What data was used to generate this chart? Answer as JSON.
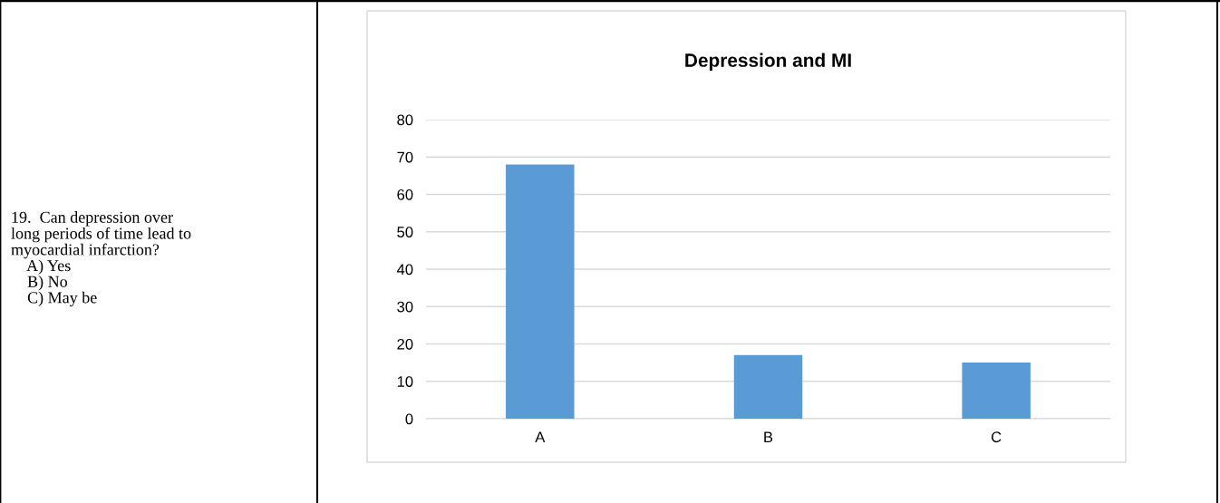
{
  "chart_data": {
    "type": "bar",
    "title": "Depression and MI",
    "categories": [
      "A",
      "B",
      "C"
    ],
    "values": [
      68,
      17,
      15
    ],
    "color": "#5b9bd5",
    "ylim": [
      0,
      80
    ],
    "yticks": [
      0,
      10,
      20,
      30,
      40,
      50,
      60,
      70,
      80
    ],
    "grid": "y",
    "annotations": [
      "19.  Can depression over\nlong periods of time lead to\nmyocardial infarction?\n    A) Yes\n    B) No\n    C) May be"
    ]
  }
}
